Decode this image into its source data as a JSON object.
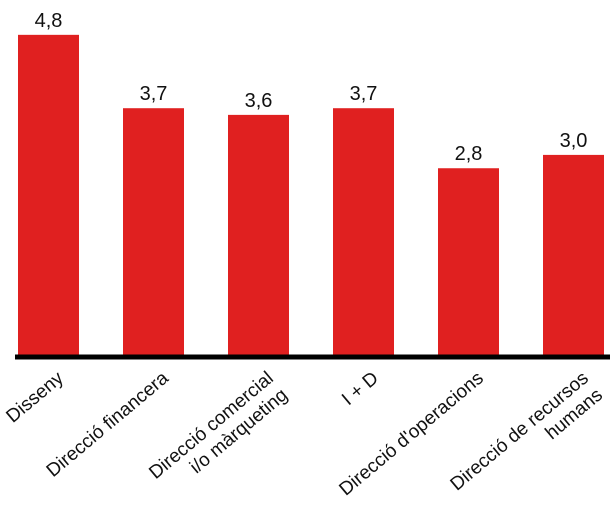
{
  "chart_data": {
    "type": "bar",
    "categories": [
      [
        "Disseny"
      ],
      [
        "Direcció financera"
      ],
      [
        "Direcció comercial",
        "i/o màrqueting"
      ],
      [
        "I + D"
      ],
      [
        "Direcció d'operacions"
      ],
      [
        "Direcció de recursos",
        "humans"
      ]
    ],
    "values": [
      4.8,
      3.7,
      3.6,
      3.7,
      2.8,
      3.0
    ],
    "value_labels": [
      "4,8",
      "3,7",
      "3,6",
      "3,7",
      "2,8",
      "3,0"
    ],
    "title": "",
    "xlabel": "",
    "ylabel": "",
    "ylim": [
      0,
      5
    ],
    "grid": false,
    "legend": "none",
    "bar_color": "#e02020",
    "axis_color": "#000000"
  }
}
